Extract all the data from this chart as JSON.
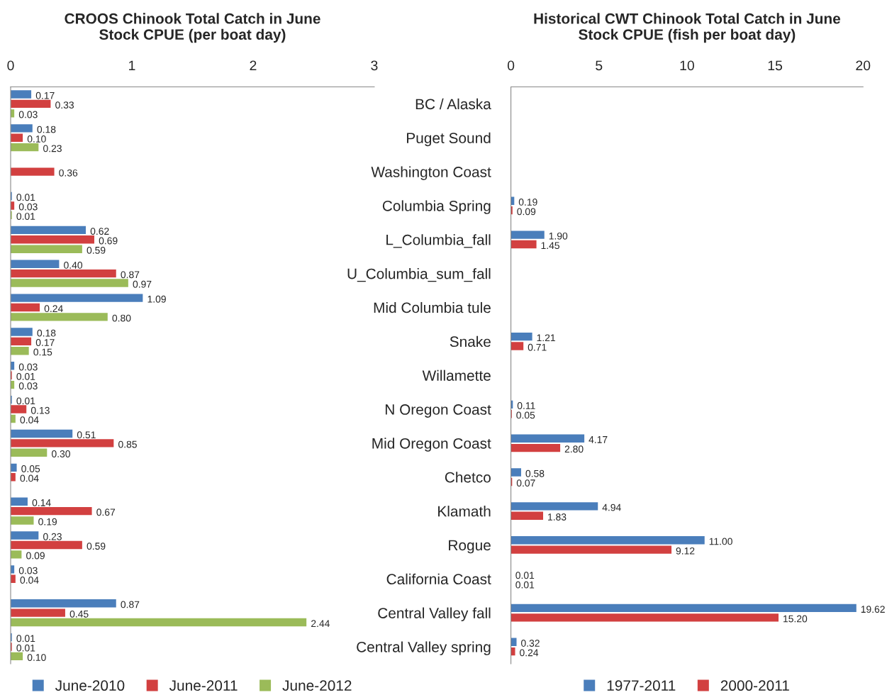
{
  "chart_data": [
    {
      "type": "bar",
      "orientation": "horizontal",
      "title": "CROOS Chinook Total Catch in June",
      "subtitle": "Stock CPUE (per boat day)",
      "categories": [
        null,
        null,
        null,
        null,
        null,
        null,
        null,
        null,
        null,
        null,
        null,
        null,
        null,
        null,
        null,
        null,
        null
      ],
      "tick_labels": "x",
      "xlim": [
        0,
        3
      ],
      "xticks": [
        0,
        1,
        2,
        3
      ],
      "legend": "bottom",
      "grid": false,
      "series": [
        {
          "name": "June-2010",
          "color": "#4a7ebb",
          "values": [
            0.17,
            0.18,
            null,
            0.01,
            0.62,
            0.4,
            1.09,
            0.18,
            0.03,
            0.01,
            0.51,
            0.05,
            0.14,
            0.23,
            0.03,
            0.87,
            0.01
          ],
          "value_labels": [
            "0.17",
            "0.18",
            null,
            "0.01",
            "0.62",
            "0.40",
            "1.09",
            "0.18",
            "0.03",
            "0.01",
            "0.51",
            "0.05",
            "0.14",
            "0.23",
            "0.03",
            "0.87",
            "0.01"
          ]
        },
        {
          "name": "June-2011",
          "color": "#d24040",
          "values": [
            0.33,
            0.1,
            0.36,
            0.03,
            0.69,
            0.87,
            0.24,
            0.17,
            0.01,
            0.13,
            0.85,
            0.04,
            0.67,
            0.59,
            0.04,
            0.45,
            0.01
          ],
          "value_labels": [
            "0.33",
            "0.10",
            "0.36",
            "0.03",
            "0.69",
            "0.87",
            "0.24",
            "0.17",
            "0.01",
            "0.13",
            "0.85",
            "0.04",
            "0.67",
            "0.59",
            "0.04",
            "0.45",
            "0.01"
          ]
        },
        {
          "name": "June-2012",
          "color": "#9bbb59",
          "values": [
            0.03,
            0.23,
            null,
            0.01,
            0.59,
            0.97,
            0.8,
            0.15,
            0.03,
            0.04,
            0.3,
            null,
            0.19,
            0.09,
            null,
            2.44,
            0.1
          ],
          "value_labels": [
            "0.03",
            "0.23",
            null,
            "0.01",
            "0.59",
            "0.97",
            "0.80",
            "0.15",
            "0.03",
            "0.04",
            "0.30",
            null,
            "0.19",
            "0.09",
            null,
            "2.44",
            "0.10"
          ]
        }
      ]
    },
    {
      "type": "bar",
      "orientation": "horizontal",
      "title": "Historical CWT Chinook Total Catch in June",
      "subtitle": "Stock CPUE (fish per boat day)",
      "categories": [
        "BC / Alaska",
        "Puget Sound",
        "Washington Coast",
        "Columbia Spring",
        "L_Columbia_fall",
        "U_Columbia_sum_fall",
        "Mid Columbia tule",
        "Snake",
        "Willamette",
        "N Oregon Coast",
        "Mid Oregon Coast",
        "Chetco",
        "Klamath",
        "Rogue",
        "California Coast",
        "Central Valley fall",
        "Central Valley spring"
      ],
      "xlim": [
        0,
        20
      ],
      "xticks": [
        0,
        5,
        10,
        15,
        20
      ],
      "legend": "bottom",
      "grid": false,
      "series": [
        {
          "name": "1977-2011",
          "color": "#4a7ebb",
          "values": [
            null,
            null,
            null,
            0.19,
            1.9,
            null,
            null,
            1.21,
            null,
            0.11,
            4.17,
            0.58,
            4.94,
            11.0,
            0.01,
            19.62,
            0.32
          ],
          "value_labels": [
            null,
            null,
            null,
            "0.19",
            "1.90",
            null,
            null,
            "1.21",
            null,
            "0.11",
            "4.17",
            "0.58",
            "4.94",
            "11.00",
            "0.01",
            "19.62",
            "0.32"
          ]
        },
        {
          "name": "2000-2011",
          "color": "#d24040",
          "values": [
            null,
            null,
            null,
            0.09,
            1.45,
            null,
            null,
            0.71,
            null,
            0.05,
            2.8,
            0.07,
            1.83,
            9.12,
            0.01,
            15.2,
            0.24
          ],
          "value_labels": [
            null,
            null,
            null,
            "0.09",
            "1.45",
            null,
            null,
            "0.71",
            null,
            "0.05",
            "2.80",
            "0.07",
            "1.83",
            "9.12",
            "0.01",
            "15.20",
            "0.24"
          ]
        }
      ]
    }
  ]
}
